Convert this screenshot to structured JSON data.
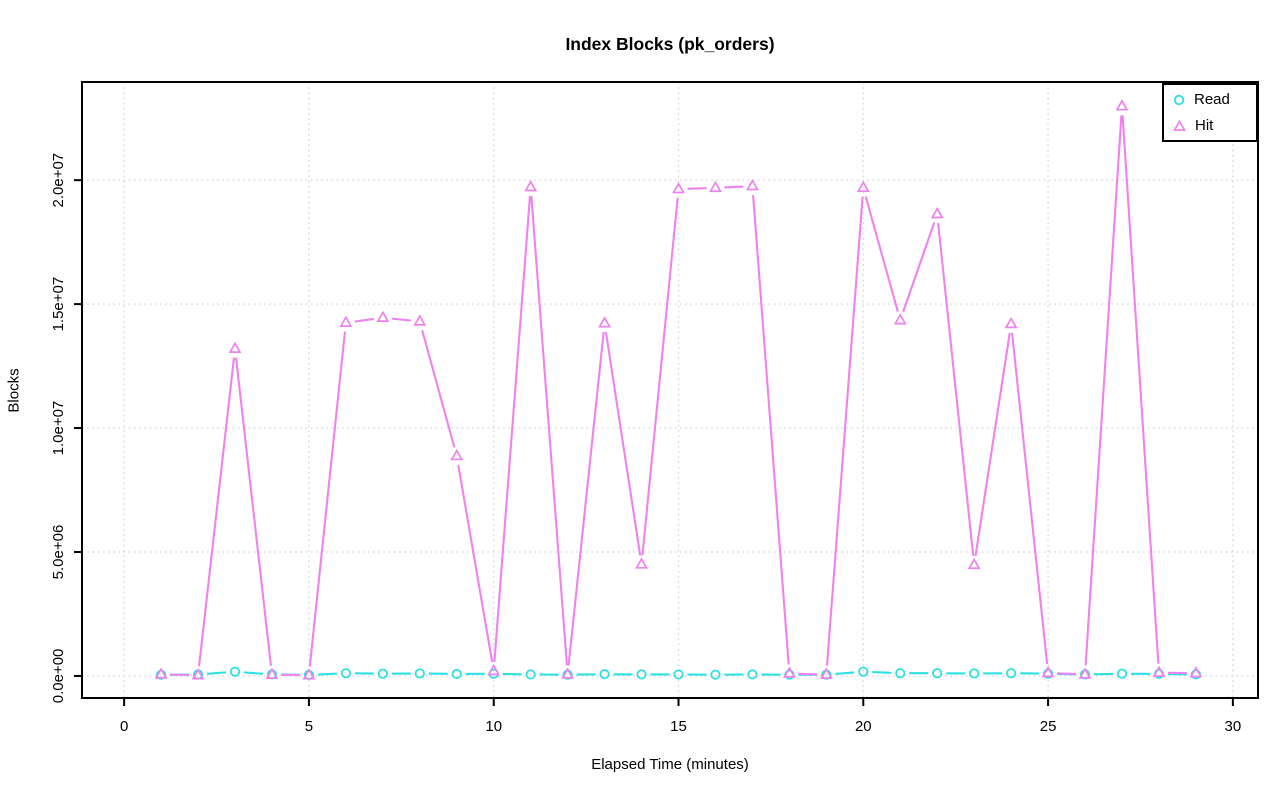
{
  "chart_data": {
    "type": "line",
    "title": "Index Blocks (pk_orders)",
    "xlabel": "Elapsed Time (minutes)",
    "ylabel": "Blocks",
    "x": [
      1,
      2,
      3,
      4,
      5,
      6,
      7,
      8,
      9,
      10,
      11,
      12,
      13,
      14,
      15,
      16,
      17,
      18,
      19,
      20,
      21,
      22,
      23,
      24,
      25,
      26,
      27,
      28,
      29
    ],
    "series": [
      {
        "name": "Read",
        "marker": "circle",
        "color": "#2EE0E0",
        "values": [
          50000,
          60000,
          170000,
          60000,
          40000,
          110000,
          90000,
          100000,
          80000,
          90000,
          60000,
          50000,
          70000,
          60000,
          60000,
          50000,
          60000,
          50000,
          50000,
          170000,
          110000,
          110000,
          100000,
          110000,
          90000,
          60000,
          90000,
          80000,
          60000
        ]
      },
      {
        "name": "Hit",
        "marker": "triangle",
        "color": "#EE82EE",
        "values": [
          60000,
          30000,
          13200000,
          50000,
          30000,
          14250000,
          14450000,
          14300000,
          8870000,
          200000,
          19720000,
          60000,
          14230000,
          4500000,
          19640000,
          19690000,
          19760000,
          100000,
          50000,
          19690000,
          14350000,
          18630000,
          4480000,
          14200000,
          120000,
          60000,
          22980000,
          130000,
          110000
        ]
      }
    ],
    "xticks": {
      "values": [
        0,
        5,
        10,
        15,
        20,
        25,
        30
      ],
      "labels": [
        "0",
        "5",
        "10",
        "15",
        "20",
        "25",
        "30"
      ]
    },
    "yticks": {
      "values": [
        0,
        5000000,
        10000000,
        15000000,
        20000000
      ],
      "labels": [
        "0.0e+00",
        "5.0e+06",
        "1.0e+07",
        "1.5e+07",
        "2.0e+07"
      ]
    },
    "xlim": [
      -1.14,
      30.68
    ],
    "ylim": [
      -890000,
      23960000
    ],
    "grid": "dotted",
    "line_style": "markers with gapped segments (R type=b)",
    "legend_position": "top-right"
  },
  "colors": {
    "background": "#ffffff",
    "axis": "#000000",
    "grid": "#d8d8d8"
  }
}
